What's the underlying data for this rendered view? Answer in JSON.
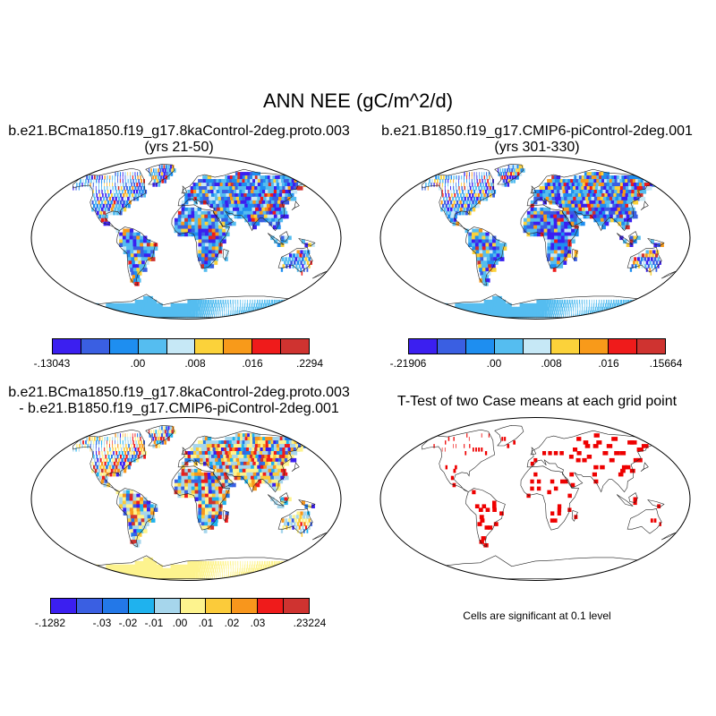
{
  "title": "ANN NEE (gC/m^2/d)",
  "panels": [
    {
      "title_line1": "b.e21.BCma1850.f19_g17.8kaControl-2deg.proto.003",
      "title_line2": "(yrs 21-50)",
      "colorbar": {
        "colors": [
          "#3b1ff0",
          "#3a5fe2",
          "#1e8ef0",
          "#55bdf0",
          "#c6e8f6",
          "#fbd23a",
          "#f89a1a",
          "#ef1b1b",
          "#cf3330"
        ],
        "labels": [
          "-.13043",
          ".00",
          ".008",
          ".016",
          ".2294"
        ],
        "label_at_boundary": [
          0,
          3,
          5,
          7,
          9
        ]
      },
      "map_style": "abs"
    },
    {
      "title_line1": "b.e21.B1850.f19_g17.CMIP6-piControl-2deg.001",
      "title_line2": "(yrs 301-330)",
      "colorbar": {
        "colors": [
          "#3b1ff0",
          "#3a5fe2",
          "#1e8ef0",
          "#55bdf0",
          "#c6e8f6",
          "#fbd23a",
          "#f89a1a",
          "#ef1b1b",
          "#cf3330"
        ],
        "labels": [
          "-.21906",
          ".00",
          ".008",
          ".016",
          ".15664"
        ],
        "label_at_boundary": [
          0,
          3,
          5,
          7,
          9
        ]
      },
      "map_style": "abs"
    },
    {
      "title_line1": "b.e21.BCma1850.f19_g17.8kaControl-2deg.proto.003",
      "title_line2": "- b.e21.B1850.f19_g17.CMIP6-piControl-2deg.001",
      "colorbar": {
        "colors": [
          "#3b1ff0",
          "#3a5fe2",
          "#2378e8",
          "#1fb2ee",
          "#a6d6ec",
          "#fdf38e",
          "#fbcb3a",
          "#f8961c",
          "#ef1b1b",
          "#cf3330"
        ],
        "labels": [
          "-.1282",
          "-.03",
          "-.02",
          "-.01",
          ".00",
          ".01",
          ".02",
          ".03",
          ".23224"
        ],
        "label_at_boundary": [
          0,
          2,
          3,
          4,
          5,
          6,
          7,
          8,
          10
        ]
      },
      "map_style": "diff"
    },
    {
      "title_line1": "T-Test of two Case means at each grid point",
      "note": "Cells are significant at 0.1 level",
      "map_style": "ttest"
    }
  ]
}
